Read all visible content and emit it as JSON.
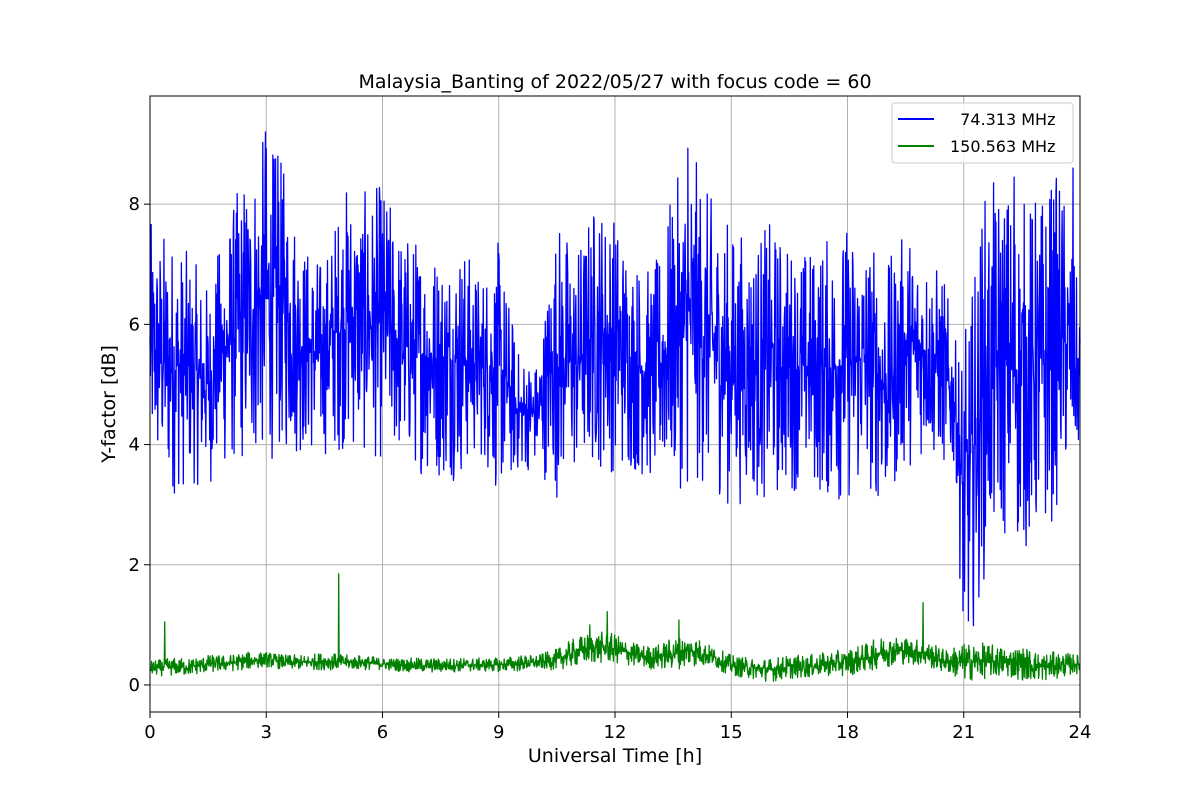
{
  "chart_data": {
    "type": "line",
    "title": "Malaysia_Banting of 2022/05/27 with focus code = 60",
    "xlabel": "Universal Time [h]",
    "ylabel": "Y-factor [dB]",
    "xlim": [
      0,
      24
    ],
    "ylim": [
      -0.45,
      9.8
    ],
    "xticks": [
      0,
      3,
      6,
      9,
      12,
      15,
      18,
      21,
      24
    ],
    "yticks": [
      0,
      2,
      4,
      6,
      8
    ],
    "grid": true,
    "legend": "top-right",
    "series": [
      {
        "name": "  74.313 MHz",
        "color": "#0000ff",
        "x": [
          0,
          0.5,
          1,
          1.5,
          2,
          2.5,
          3,
          3.5,
          4,
          4.5,
          5,
          5.5,
          6,
          6.5,
          7,
          7.5,
          8,
          8.5,
          9,
          9.5,
          10,
          10.5,
          11,
          11.5,
          12,
          12.5,
          13,
          13.5,
          14,
          14.5,
          15,
          15.5,
          16,
          16.5,
          17,
          17.5,
          18,
          18.5,
          19,
          19.5,
          20,
          20.5,
          20.8,
          21,
          21.2,
          21.5,
          22,
          22.5,
          23,
          23.5,
          24
        ],
        "low": [
          3.4,
          3.1,
          3.3,
          3.3,
          3.6,
          3.6,
          3.7,
          3.8,
          3.8,
          3.8,
          3.9,
          3.8,
          3.7,
          3.7,
          3.5,
          3.4,
          3.4,
          3.8,
          3.1,
          3.5,
          3.6,
          3.1,
          3.4,
          3.6,
          3.5,
          3.5,
          3.3,
          3.3,
          3.2,
          3.3,
          2.9,
          3.1,
          3.0,
          3.2,
          3.3,
          3.0,
          3.0,
          3.2,
          2.9,
          3.6,
          3.8,
          3.6,
          3.5,
          0.05,
          0.8,
          1.7,
          2.4,
          2.2,
          2.2,
          3.1,
          3.8
        ],
        "high": [
          7.7,
          7.6,
          7.2,
          6.7,
          7.8,
          8.7,
          9.2,
          8.6,
          7.4,
          7.1,
          8.4,
          8.2,
          8.4,
          7.6,
          7.5,
          7.3,
          7.5,
          6.9,
          7.4,
          5.6,
          5.4,
          7.9,
          7.3,
          8.2,
          7.9,
          7.2,
          6.9,
          8.3,
          8.9,
          8.1,
          7.7,
          7.5,
          7.7,
          7.4,
          7.3,
          7.5,
          7.7,
          7.6,
          7.0,
          7.6,
          7.3,
          6.8,
          5.7,
          5.8,
          6.5,
          8.2,
          8.5,
          8.1,
          8.3,
          8.6,
          6.4
        ],
        "peaks": [
          [
            2.98,
            9.2
          ],
          [
            3.3,
            8.8
          ],
          [
            13.88,
            8.93
          ],
          [
            23.82,
            8.6
          ],
          [
            22.3,
            8.45
          ]
        ]
      },
      {
        "name": "150.563 MHz",
        "color": "#008000",
        "x": [
          0,
          0.5,
          1,
          1.5,
          2,
          2.5,
          3,
          3.5,
          4,
          4.5,
          5,
          5.5,
          6,
          6.5,
          7,
          7.5,
          8,
          8.5,
          9,
          9.5,
          10,
          10.5,
          11,
          11.5,
          12,
          12.5,
          13,
          13.5,
          14,
          14.5,
          15,
          15.5,
          16,
          16.5,
          17,
          17.5,
          18,
          18.5,
          19,
          19.5,
          20,
          20.5,
          21,
          21.5,
          22,
          22.5,
          23,
          23.5,
          24
        ],
        "low": [
          0.15,
          0.15,
          0.15,
          0.2,
          0.22,
          0.25,
          0.3,
          0.25,
          0.25,
          0.25,
          0.25,
          0.25,
          0.25,
          0.22,
          0.2,
          0.2,
          0.22,
          0.22,
          0.22,
          0.22,
          0.25,
          0.25,
          0.3,
          0.35,
          0.35,
          0.3,
          0.25,
          0.25,
          0.3,
          0.3,
          0.15,
          0.1,
          0.05,
          0.1,
          0.12,
          0.15,
          0.15,
          0.22,
          0.3,
          0.35,
          0.3,
          0.2,
          0.05,
          0.1,
          0.12,
          0.08,
          0.05,
          0.12,
          0.2
        ],
        "high": [
          0.4,
          0.45,
          0.45,
          0.5,
          0.5,
          0.55,
          0.55,
          0.5,
          0.5,
          0.55,
          0.5,
          0.5,
          0.45,
          0.45,
          0.45,
          0.45,
          0.45,
          0.45,
          0.45,
          0.5,
          0.5,
          0.6,
          0.8,
          0.9,
          0.85,
          0.7,
          0.65,
          0.8,
          0.85,
          0.65,
          0.5,
          0.45,
          0.45,
          0.5,
          0.5,
          0.55,
          0.6,
          0.7,
          0.85,
          0.8,
          0.75,
          0.6,
          0.7,
          0.7,
          0.65,
          0.65,
          0.55,
          0.55,
          0.5
        ],
        "peaks": [
          [
            0.38,
            1.05
          ],
          [
            4.87,
            1.85
          ],
          [
            11.35,
            1.0
          ],
          [
            11.8,
            1.22
          ],
          [
            13.65,
            1.08
          ],
          [
            19.95,
            1.37
          ]
        ]
      }
    ]
  }
}
